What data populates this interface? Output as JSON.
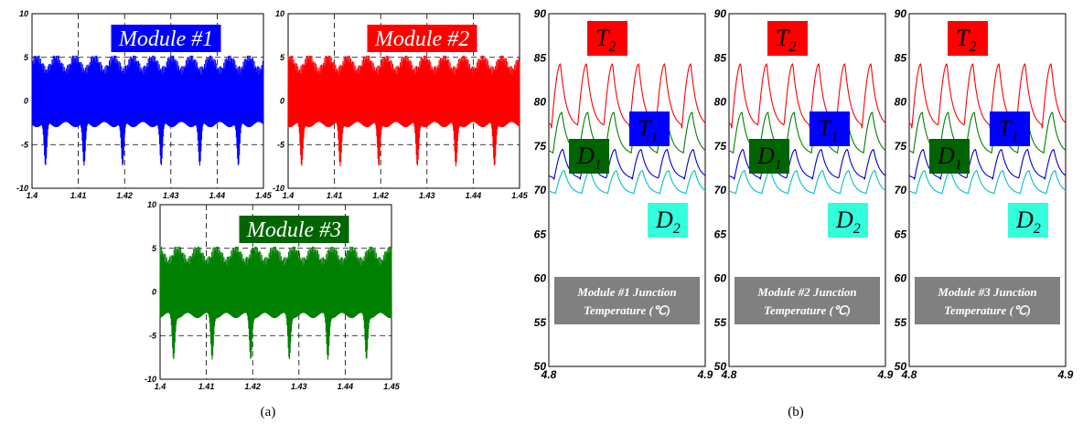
{
  "captions": {
    "a": "(a)",
    "b": "(b)"
  },
  "chart_data": [
    {
      "type": "line",
      "panel": "a",
      "label": "Module #1",
      "color": "#0000ff",
      "label_bg": "#0000ff",
      "xlim": [
        1.4,
        1.45
      ],
      "ylim": [
        -10,
        10
      ],
      "x_ticks": [
        "1.4",
        "1.41",
        "1.42",
        "1.43",
        "1.44",
        "1.45"
      ],
      "y_ticks": [
        "10",
        "5",
        "0",
        "-5",
        "-10"
      ],
      "grid": true,
      "envelope": {
        "upper": 5,
        "lower_typical": -3,
        "lower_dips": -8
      }
    },
    {
      "type": "line",
      "panel": "a",
      "label": "Module #2",
      "color": "#ff0000",
      "label_bg": "#ff0000",
      "xlim": [
        1.4,
        1.45
      ],
      "ylim": [
        -10,
        10
      ],
      "x_ticks": [
        "1.4",
        "1.41",
        "1.42",
        "1.43",
        "1.44",
        "1.45"
      ],
      "y_ticks": [
        "10",
        "5",
        "0",
        "-5",
        "-10"
      ],
      "grid": true,
      "envelope": {
        "upper": 5,
        "lower_typical": -3,
        "lower_dips": -8
      }
    },
    {
      "type": "line",
      "panel": "a",
      "label": "Module #3",
      "color": "#008000",
      "label_bg": "#006400",
      "xlim": [
        1.4,
        1.45
      ],
      "ylim": [
        -10,
        10
      ],
      "x_ticks": [
        "1.4",
        "1.41",
        "1.42",
        "1.43",
        "1.44",
        "1.45"
      ],
      "y_ticks": [
        "10",
        "5",
        "0",
        "-5",
        "-10"
      ],
      "grid": true,
      "envelope": {
        "upper": 5,
        "lower_typical": -3,
        "lower_dips": -8
      }
    },
    {
      "type": "line",
      "panel": "b",
      "label_line1": "Module #1 Junction",
      "label_line2": "Temperature (℃)",
      "xlim": [
        4.8,
        4.9
      ],
      "ylim": [
        50,
        90
      ],
      "x_ticks": [
        "4.8",
        "4.9"
      ],
      "y_ticks": [
        "90",
        "85",
        "80",
        "75",
        "70",
        "65",
        "60",
        "55",
        "50"
      ],
      "series": [
        {
          "name": "T2",
          "main": "T",
          "sub": "2",
          "color": "#ff0000",
          "label_bg": "#ff0000",
          "min": 77,
          "max": 84.3
        },
        {
          "name": "D1",
          "main": "D",
          "sub": "1",
          "color": "#008000",
          "label_bg": "#006400",
          "min": 74,
          "max": 78.8
        },
        {
          "name": "T1",
          "main": "T",
          "sub": "1",
          "color": "#0000cc",
          "label_bg": "#0000ff",
          "min": 71.2,
          "max": 74.6
        },
        {
          "name": "D2",
          "main": "D",
          "sub": "2",
          "color": "#00c0c0",
          "label_bg": "#33ffdd",
          "min": 69.5,
          "max": 72.2
        }
      ]
    },
    {
      "type": "line",
      "panel": "b",
      "label_line1": "Module #2 Junction",
      "label_line2": "Temperature (℃)",
      "xlim": [
        4.8,
        4.9
      ],
      "ylim": [
        50,
        90
      ],
      "x_ticks": [
        "4.8",
        "4.9"
      ],
      "y_ticks": [
        "90",
        "85",
        "80",
        "75",
        "70",
        "65",
        "60",
        "55",
        "50"
      ],
      "series": [
        {
          "name": "T2",
          "main": "T",
          "sub": "2",
          "color": "#ff0000",
          "label_bg": "#ff0000",
          "min": 77,
          "max": 84.3
        },
        {
          "name": "D1",
          "main": "D",
          "sub": "1",
          "color": "#008000",
          "label_bg": "#006400",
          "min": 74,
          "max": 78.8
        },
        {
          "name": "T1",
          "main": "T",
          "sub": "1",
          "color": "#0000cc",
          "label_bg": "#0000ff",
          "min": 71.2,
          "max": 74.6
        },
        {
          "name": "D2",
          "main": "D",
          "sub": "2",
          "color": "#00c0c0",
          "label_bg": "#33ffdd",
          "min": 69.5,
          "max": 72.2
        }
      ]
    },
    {
      "type": "line",
      "panel": "b",
      "label_line1": "Module #3 Junction",
      "label_line2": "Temperature (℃)",
      "xlim": [
        4.8,
        4.9
      ],
      "ylim": [
        50,
        90
      ],
      "x_ticks": [
        "4.8",
        "4.9"
      ],
      "y_ticks": [
        "90",
        "85",
        "80",
        "75",
        "70",
        "65",
        "60",
        "55",
        "50"
      ],
      "series": [
        {
          "name": "T2",
          "main": "T",
          "sub": "2",
          "color": "#ff0000",
          "label_bg": "#ff0000",
          "min": 77,
          "max": 84.3
        },
        {
          "name": "D1",
          "main": "D",
          "sub": "1",
          "color": "#008000",
          "label_bg": "#006400",
          "min": 74,
          "max": 78.8
        },
        {
          "name": "T1",
          "main": "T",
          "sub": "1",
          "color": "#0000cc",
          "label_bg": "#0000ff",
          "min": 71.2,
          "max": 74.6
        },
        {
          "name": "D2",
          "main": "D",
          "sub": "2",
          "color": "#00c0c0",
          "label_bg": "#33ffdd",
          "min": 69.5,
          "max": 72.2
        }
      ]
    }
  ]
}
